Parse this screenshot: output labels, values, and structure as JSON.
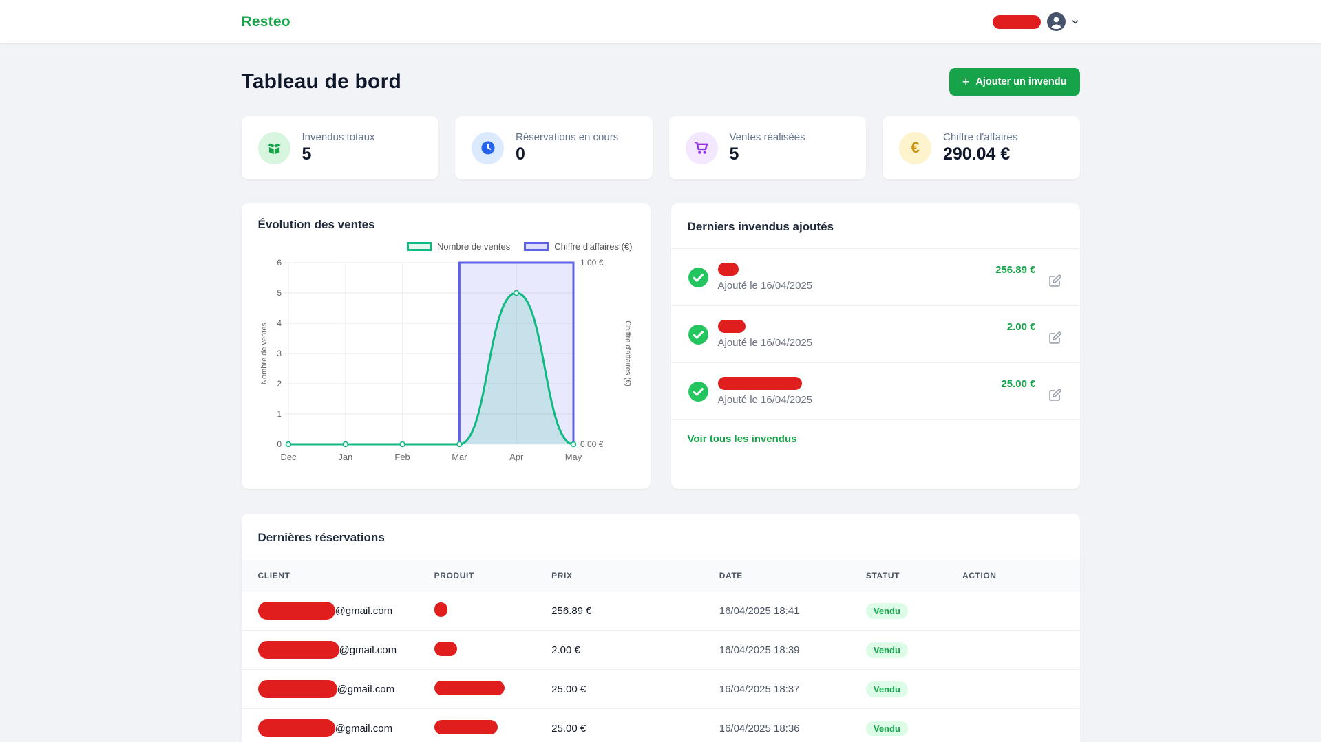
{
  "theme": {
    "brand_green": "#16a34a",
    "redaction_red": "#e01e1e",
    "status_badge_bg": "#dcfce7",
    "status_badge_text": "#16a34a"
  },
  "header": {
    "logo": "Resteo",
    "user_name_redacted": true,
    "user_redact_width": 70
  },
  "page": {
    "title": "Tableau de bord",
    "add_button_label": "Ajouter un invendu"
  },
  "stats": [
    {
      "label": "Invendus totaux",
      "value": "5",
      "icon": "open-box-icon"
    },
    {
      "label": "Réservations en cours",
      "value": "0",
      "icon": "clock-icon"
    },
    {
      "label": "Ventes réalisées",
      "value": "5",
      "icon": "cart-icon"
    },
    {
      "label": "Chiffre d'affaires",
      "value": "290.04 €",
      "icon": "euro-icon"
    }
  ],
  "sales_chart": {
    "card_title": "Évolution des ventes"
  },
  "chart_data": {
    "type": "line",
    "x": [
      "Dec",
      "Jan",
      "Feb",
      "Mar",
      "Apr",
      "May"
    ],
    "series": [
      {
        "name": "Nombre de ventes",
        "axis": "left",
        "values": [
          0,
          0,
          0,
          0,
          5,
          0
        ],
        "color": "#10b981",
        "fill": "rgba(16,185,129,0.16)",
        "legend_fill": "#e4f6ee",
        "style": "smooth"
      },
      {
        "name": "Chiffre d'affaires (€)",
        "axis": "right",
        "values": [
          0,
          0,
          0,
          1,
          1,
          1
        ],
        "color": "#5c61e6",
        "fill": "rgba(99,102,241,0.14)",
        "legend_fill": "#dedffb",
        "style": "step"
      }
    ],
    "left_axis": {
      "label": "Nombre de ventes",
      "min": 0,
      "max": 6,
      "ticks": [
        0,
        1,
        2,
        3,
        4,
        5,
        6
      ]
    },
    "right_axis": {
      "label": "Chiffre d'affaires (€)",
      "min": 0,
      "max": 1,
      "tick_labels": [
        "0,00 €",
        "1,00 €"
      ]
    },
    "legend_position": "top-right",
    "grid": true
  },
  "recent_unsold": {
    "title": "Derniers invendus ajoutés",
    "items": [
      {
        "name_redact_width": 30,
        "date": "Ajouté le 16/04/2025",
        "price": "256.89 €"
      },
      {
        "name_redact_width": 40,
        "date": "Ajouté le 16/04/2025",
        "price": "2.00 €"
      },
      {
        "name_redact_width": 122,
        "date": "Ajouté le 16/04/2025",
        "price": "25.00 €"
      }
    ],
    "footer_link": "Voir tous les invendus"
  },
  "reservations": {
    "title": "Dernières réservations",
    "columns": [
      "Client",
      "Produit",
      "Prix",
      "Date",
      "Statut",
      "Action"
    ],
    "rows": [
      {
        "client_redact_width": 112,
        "client_suffix": "@gmail.com",
        "product_redact_width": 19,
        "price": "256.89 €",
        "date": "16/04/2025 18:41",
        "status": "Vendu"
      },
      {
        "client_redact_width": 118,
        "client_suffix": "@gmail.com",
        "product_redact_width": 33,
        "price": "2.00 €",
        "date": "16/04/2025 18:39",
        "status": "Vendu"
      },
      {
        "client_redact_width": 115,
        "client_suffix": "@gmail.com",
        "product_redact_width": 102,
        "price": "25.00 €",
        "date": "16/04/2025 18:37",
        "status": "Vendu"
      },
      {
        "client_redact_width": 112,
        "client_suffix": "@gmail.com",
        "product_redact_width": 92,
        "price": "25.00 €",
        "date": "16/04/2025 18:36",
        "status": "Vendu"
      }
    ]
  }
}
